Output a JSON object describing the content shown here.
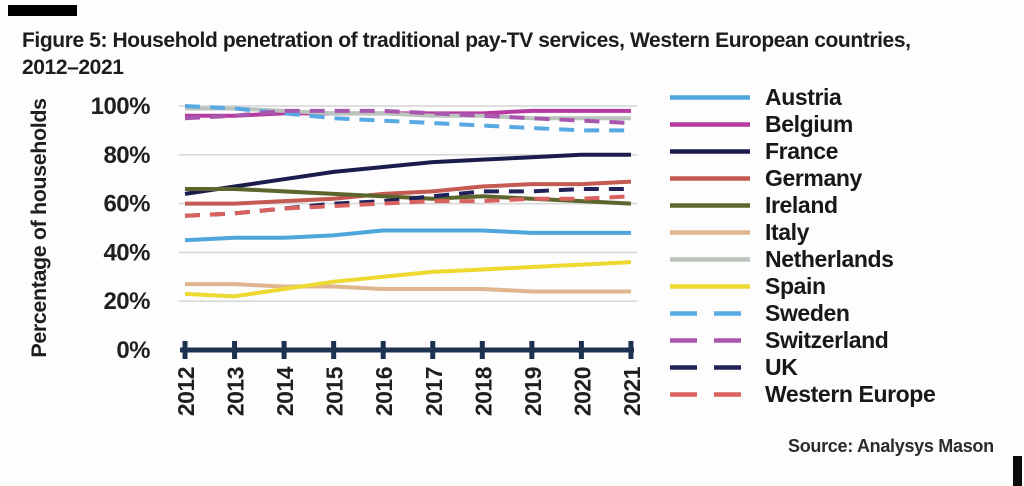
{
  "figure": {
    "title_line1": "Figure 5: Household penetration of traditional pay-TV services, Western European countries,",
    "title_line2": "2012–2021",
    "source": "Source: Analysys Mason"
  },
  "chart_data": {
    "type": "line",
    "title": "Household penetration of traditional pay-TV services, Western European countries, 2012-2021",
    "xlabel": "",
    "ylabel": "Percentage of households",
    "x": [
      2012,
      2013,
      2014,
      2015,
      2016,
      2017,
      2018,
      2019,
      2020,
      2021
    ],
    "y_tick_labels": [
      "0%",
      "20%",
      "40%",
      "60%",
      "80%",
      "100%"
    ],
    "y_tick_values": [
      0,
      20,
      40,
      60,
      80,
      100
    ],
    "ylim": [
      0,
      100
    ],
    "grid": true,
    "legend_position": "right",
    "series": [
      {
        "name": "Austria",
        "color": "#4ea6dc",
        "dash": false,
        "values": [
          45,
          46,
          46,
          47,
          49,
          49,
          49,
          48,
          48,
          48
        ]
      },
      {
        "name": "Belgium",
        "color": "#b73aa2",
        "dash": false,
        "values": [
          96,
          96,
          97,
          97,
          97,
          97,
          97,
          98,
          98,
          98
        ]
      },
      {
        "name": "France",
        "color": "#1b1b4d",
        "dash": false,
        "values": [
          64,
          67,
          70,
          73,
          75,
          77,
          78,
          79,
          80,
          80
        ]
      },
      {
        "name": "Germany",
        "color": "#c55a52",
        "dash": false,
        "values": [
          60,
          60,
          61,
          62,
          64,
          65,
          67,
          68,
          68,
          69
        ]
      },
      {
        "name": "Ireland",
        "color": "#5c662c",
        "dash": false,
        "values": [
          66,
          66,
          65,
          64,
          63,
          62,
          63,
          62,
          61,
          60
        ]
      },
      {
        "name": "Italy",
        "color": "#dfb68d",
        "dash": false,
        "values": [
          27,
          27,
          26,
          26,
          25,
          25,
          25,
          24,
          24,
          24
        ]
      },
      {
        "name": "Netherlands",
        "color": "#bac4bc",
        "dash": false,
        "values": [
          99,
          99,
          98,
          97,
          97,
          96,
          96,
          95,
          95,
          95
        ]
      },
      {
        "name": "Spain",
        "color": "#eed931",
        "dash": false,
        "values": [
          23,
          22,
          25,
          28,
          30,
          32,
          33,
          34,
          35,
          36
        ]
      },
      {
        "name": "Sweden",
        "color": "#57a9e3",
        "dash": true,
        "values": [
          100,
          99,
          97,
          95,
          94,
          93,
          92,
          91,
          90,
          90
        ]
      },
      {
        "name": "Switzerland",
        "color": "#a957ae",
        "dash": true,
        "values": [
          95,
          96,
          98,
          98,
          98,
          97,
          96,
          95,
          94,
          93
        ]
      },
      {
        "name": "UK",
        "color": "#22225a",
        "dash": true,
        "values": [
          55,
          56,
          58,
          60,
          61,
          63,
          65,
          65,
          66,
          66
        ]
      },
      {
        "name": "Western Europe",
        "color": "#d9625e",
        "dash": true,
        "values": [
          55,
          56,
          58,
          59,
          60,
          61,
          61,
          62,
          62,
          63
        ]
      }
    ]
  },
  "style_colors": {
    "axis": "#1d3251",
    "grid": "#d9d9d9",
    "text": "#1f1f1f"
  }
}
